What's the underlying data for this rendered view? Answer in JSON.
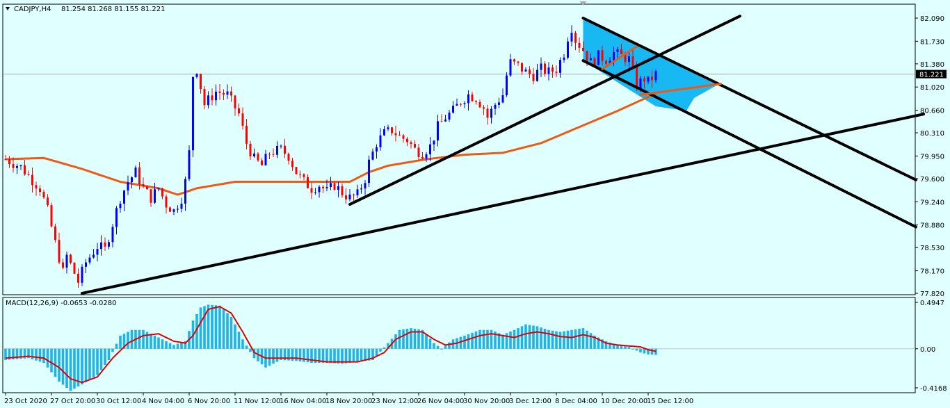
{
  "header": {
    "symbol": "CADJPY,H4",
    "ohlc": "81.254 81.268 81.155 81.221",
    "menu_icon": "triangle-down-icon"
  },
  "macd": {
    "label": "MACD(12,26,9) -0.0653 -0.0280"
  },
  "chart_data": [
    {
      "type": "candlestick",
      "title": "CADJPY,H4 81.254 81.268 81.155 81.221",
      "xlabel": "",
      "ylabel": "",
      "ylim": [
        77.82,
        82.09
      ],
      "y_ticks": [
        82.09,
        81.73,
        81.38,
        81.02,
        80.66,
        80.31,
        79.95,
        79.6,
        79.24,
        78.88,
        78.53,
        78.17,
        77.82
      ],
      "y_tick_labels": [
        "82.090",
        "81.730",
        "81.380",
        "81.020",
        "80.660",
        "80.310",
        "79.950",
        "79.600",
        "79.240",
        "78.880",
        "78.530",
        "78.170",
        "77.820"
      ],
      "x_tick_labels": [
        "23 Oct 2020",
        "27 Oct 20:00",
        "30 Oct 12:00",
        "4 Nov 04:00",
        "6 Nov 20:00",
        "11 Nov 12:00",
        "16 Nov 04:00",
        "18 Nov 20:00",
        "23 Nov 12:00",
        "26 Nov 04:00",
        "30 Nov 20:00",
        "3 Dec 12:00",
        "8 Dec 04:00",
        "10 Dec 20:00",
        "15 Dec 12:00"
      ],
      "x_tick_index": [
        0,
        12,
        24,
        36,
        48,
        60,
        72,
        84,
        96,
        108,
        120,
        132,
        144,
        156,
        168
      ],
      "current_price": 81.221,
      "current_price_label": "81.221",
      "colors": {
        "up": "#0000ff",
        "down": "#ff0000",
        "ma": "#ee5a14",
        "trend": "#000000",
        "channel_fill": "#18b8f2",
        "bg": "#e0ffff"
      },
      "anchors": [
        [
          0,
          79.9
        ],
        [
          4,
          79.78
        ],
        [
          7,
          79.58
        ],
        [
          9,
          79.45
        ],
        [
          11,
          79.1
        ],
        [
          13,
          78.6
        ],
        [
          15,
          78.15
        ],
        [
          16,
          78.4
        ],
        [
          19,
          78.0
        ],
        [
          21,
          78.3
        ],
        [
          24,
          78.55
        ],
        [
          26,
          78.5
        ],
        [
          28,
          78.9
        ],
        [
          30,
          79.3
        ],
        [
          32,
          79.55
        ],
        [
          34,
          79.7
        ],
        [
          36,
          79.45
        ],
        [
          38,
          79.3
        ],
        [
          40,
          79.45
        ],
        [
          42,
          79.2
        ],
        [
          44,
          79.1
        ],
        [
          46,
          79.3
        ],
        [
          47,
          79.55
        ],
        [
          48,
          80.0
        ],
        [
          49,
          81.2
        ],
        [
          50,
          81.3
        ],
        [
          52,
          80.75
        ],
        [
          55,
          80.95
        ],
        [
          58,
          80.9
        ],
        [
          61,
          80.6
        ],
        [
          63,
          80.15
        ],
        [
          65,
          79.9
        ],
        [
          67,
          79.8
        ],
        [
          69,
          80.0
        ],
        [
          72,
          80.05
        ],
        [
          74,
          79.95
        ],
        [
          76,
          79.7
        ],
        [
          78,
          79.55
        ],
        [
          80,
          79.45
        ],
        [
          82,
          79.5
        ],
        [
          84,
          79.4
        ],
        [
          86,
          79.5
        ],
        [
          88,
          79.38
        ],
        [
          90,
          79.3
        ],
        [
          92,
          79.35
        ],
        [
          94,
          79.6
        ],
        [
          95,
          79.85
        ],
        [
          97,
          80.15
        ],
        [
          99,
          80.3
        ],
        [
          101,
          80.35
        ],
        [
          103,
          80.25
        ],
        [
          105,
          80.2
        ],
        [
          107,
          80.05
        ],
        [
          109,
          80.0
        ],
        [
          111,
          80.1
        ],
        [
          113,
          80.4
        ],
        [
          115,
          80.55
        ],
        [
          117,
          80.65
        ],
        [
          119,
          80.8
        ],
        [
          121,
          80.9
        ],
        [
          123,
          80.85
        ],
        [
          125,
          80.7
        ],
        [
          126,
          80.55
        ],
        [
          128,
          80.75
        ],
        [
          130,
          80.9
        ],
        [
          131,
          81.2
        ],
        [
          132,
          81.4
        ],
        [
          134,
          81.35
        ],
        [
          136,
          81.25
        ],
        [
          138,
          81.2
        ],
        [
          140,
          81.3
        ],
        [
          142,
          81.25
        ],
        [
          144,
          81.3
        ],
        [
          146,
          81.55
        ],
        [
          147,
          81.8
        ],
        [
          148,
          81.95
        ],
        [
          149,
          81.75
        ],
        [
          151,
          81.6
        ],
        [
          153,
          81.4
        ],
        [
          155,
          81.5
        ],
        [
          157,
          81.45
        ],
        [
          159,
          81.55
        ],
        [
          161,
          81.5
        ],
        [
          163,
          81.45
        ],
        [
          165,
          81.05
        ],
        [
          167,
          81.15
        ],
        [
          168,
          81.1
        ],
        [
          170,
          81.22
        ]
      ],
      "ma_anchors": [
        [
          0,
          79.9
        ],
        [
          10,
          79.92
        ],
        [
          20,
          79.75
        ],
        [
          30,
          79.55
        ],
        [
          40,
          79.45
        ],
        [
          45,
          79.35
        ],
        [
          50,
          79.45
        ],
        [
          60,
          79.55
        ],
        [
          70,
          79.55
        ],
        [
          80,
          79.55
        ],
        [
          90,
          79.55
        ],
        [
          95,
          79.7
        ],
        [
          100,
          79.8
        ],
        [
          110,
          79.9
        ],
        [
          120,
          79.97
        ],
        [
          130,
          80.0
        ],
        [
          140,
          80.15
        ],
        [
          150,
          80.4
        ],
        [
          160,
          80.65
        ],
        [
          170,
          80.92
        ]
      ],
      "trendlines": [
        {
          "name": "long-trendline",
          "from": [
            20,
            77.82
          ],
          "to": [
            240,
            80.6
          ]
        },
        {
          "name": "steep-trendline",
          "from": [
            90,
            79.2
          ],
          "to": [
            192,
            82.12
          ]
        },
        {
          "name": "upper-channel-line",
          "from": [
            151,
            82.09
          ],
          "to": [
            238,
            79.58
          ]
        },
        {
          "name": "lower-channel-line",
          "from": [
            151,
            81.43
          ],
          "to": [
            238,
            78.85
          ]
        }
      ],
      "ma_segments": [
        {
          "name": "channel-mid-line",
          "from": [
            156,
            81.3
          ],
          "to": [
            165,
            81.65
          ]
        },
        {
          "name": "flag-line",
          "from": [
            166,
            80.9
          ],
          "to": [
            187,
            81.07
          ]
        }
      ],
      "channel_polygon": [
        [
          151,
          82.09
        ],
        [
          186,
          81.05
        ],
        [
          180,
          80.85
        ],
        [
          178,
          80.65
        ],
        [
          170,
          80.72
        ],
        [
          151,
          81.43
        ]
      ]
    },
    {
      "type": "histogram+line",
      "title": "MACD(12,26,9) -0.0653 -0.0280",
      "ylim": [
        -0.4168,
        0.4947
      ],
      "y_ticks": [
        0.4947,
        0.0,
        -0.4168
      ],
      "y_tick_labels": [
        "0.4947",
        "0.00",
        "-0.4168"
      ],
      "colors": {
        "histogram": "#1db4e8",
        "signal": "#e00000"
      },
      "hist_anchors": [
        [
          0,
          -0.12
        ],
        [
          6,
          -0.1
        ],
        [
          10,
          -0.15
        ],
        [
          14,
          -0.35
        ],
        [
          17,
          -0.45
        ],
        [
          20,
          -0.38
        ],
        [
          24,
          -0.28
        ],
        [
          27,
          -0.12
        ],
        [
          30,
          0.14
        ],
        [
          33,
          0.2
        ],
        [
          36,
          0.2
        ],
        [
          40,
          0.12
        ],
        [
          44,
          0.04
        ],
        [
          47,
          0.08
        ],
        [
          49,
          0.3
        ],
        [
          51,
          0.44
        ],
        [
          53,
          0.47
        ],
        [
          56,
          0.46
        ],
        [
          59,
          0.34
        ],
        [
          62,
          0.1
        ],
        [
          65,
          -0.1
        ],
        [
          68,
          -0.2
        ],
        [
          72,
          -0.12
        ],
        [
          76,
          -0.13
        ],
        [
          80,
          -0.15
        ],
        [
          84,
          -0.15
        ],
        [
          88,
          -0.16
        ],
        [
          92,
          -0.14
        ],
        [
          96,
          -0.12
        ],
        [
          100,
          0.06
        ],
        [
          103,
          0.2
        ],
        [
          106,
          0.22
        ],
        [
          109,
          0.2
        ],
        [
          112,
          0.06
        ],
        [
          114,
          0.0
        ],
        [
          117,
          0.1
        ],
        [
          120,
          0.14
        ],
        [
          124,
          0.2
        ],
        [
          127,
          0.2
        ],
        [
          130,
          0.15
        ],
        [
          133,
          0.2
        ],
        [
          136,
          0.26
        ],
        [
          139,
          0.24
        ],
        [
          142,
          0.2
        ],
        [
          145,
          0.18
        ],
        [
          148,
          0.2
        ],
        [
          151,
          0.22
        ],
        [
          154,
          0.14
        ],
        [
          157,
          0.08
        ],
        [
          160,
          0.04
        ],
        [
          163,
          0.02
        ],
        [
          166,
          -0.04
        ],
        [
          168,
          -0.06
        ],
        [
          170,
          -0.065
        ]
      ],
      "signal_anchors": [
        [
          0,
          -0.1
        ],
        [
          6,
          -0.08
        ],
        [
          10,
          -0.1
        ],
        [
          14,
          -0.2
        ],
        [
          17,
          -0.32
        ],
        [
          20,
          -0.36
        ],
        [
          24,
          -0.3
        ],
        [
          28,
          -0.1
        ],
        [
          32,
          0.06
        ],
        [
          36,
          0.14
        ],
        [
          40,
          0.16
        ],
        [
          44,
          0.08
        ],
        [
          47,
          0.06
        ],
        [
          49,
          0.14
        ],
        [
          51,
          0.28
        ],
        [
          53,
          0.42
        ],
        [
          56,
          0.45
        ],
        [
          59,
          0.38
        ],
        [
          62,
          0.18
        ],
        [
          65,
          -0.04
        ],
        [
          68,
          -0.1
        ],
        [
          72,
          -0.1
        ],
        [
          76,
          -0.1
        ],
        [
          80,
          -0.12
        ],
        [
          84,
          -0.14
        ],
        [
          88,
          -0.14
        ],
        [
          92,
          -0.14
        ],
        [
          96,
          -0.1
        ],
        [
          99,
          -0.04
        ],
        [
          102,
          0.1
        ],
        [
          106,
          0.18
        ],
        [
          109,
          0.18
        ],
        [
          112,
          0.1
        ],
        [
          115,
          0.04
        ],
        [
          118,
          0.06
        ],
        [
          121,
          0.1
        ],
        [
          124,
          0.14
        ],
        [
          127,
          0.16
        ],
        [
          130,
          0.14
        ],
        [
          133,
          0.12
        ],
        [
          136,
          0.16
        ],
        [
          139,
          0.18
        ],
        [
          142,
          0.16
        ],
        [
          145,
          0.13
        ],
        [
          148,
          0.12
        ],
        [
          151,
          0.15
        ],
        [
          154,
          0.12
        ],
        [
          157,
          0.06
        ],
        [
          160,
          0.04
        ],
        [
          163,
          0.03
        ],
        [
          166,
          0.02
        ],
        [
          168,
          -0.01
        ],
        [
          170,
          -0.028
        ]
      ]
    }
  ]
}
